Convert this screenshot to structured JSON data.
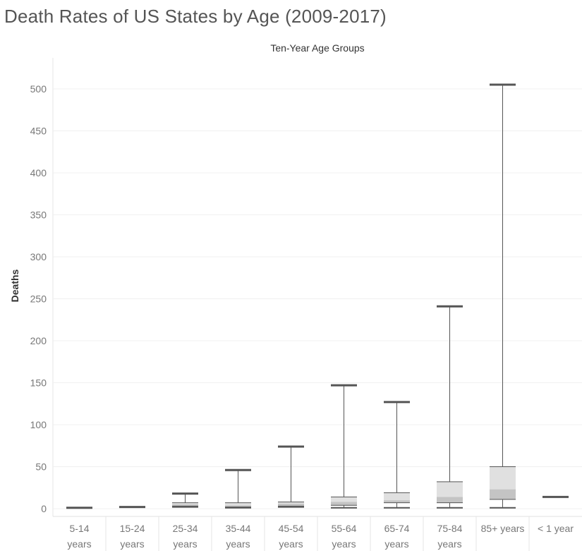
{
  "chart_data": {
    "type": "boxplot",
    "title": "Death Rates of US States by Age (2009-2017)",
    "column_header": "Ten-Year Age Groups",
    "ylabel": "Deaths",
    "xlabel": "",
    "ylim": [
      -10,
      530
    ],
    "yticks": [
      0,
      50,
      100,
      150,
      200,
      250,
      300,
      350,
      400,
      450,
      500
    ],
    "grid": true,
    "colors": {
      "box_upper": "#e0e0e0",
      "box_lower": "#c4c4c4",
      "whisker": "#555555"
    },
    "categories": [
      {
        "label": [
          "5-14",
          "years"
        ],
        "min": 1,
        "q1": 1,
        "median": 1,
        "q3": 1,
        "max": 1
      },
      {
        "label": [
          "15-24",
          "years"
        ],
        "min": 2,
        "q1": 2,
        "median": 2,
        "q3": 2,
        "max": 2
      },
      {
        "label": [
          "25-34",
          "years"
        ],
        "min": 2,
        "q1": 3,
        "median": 5,
        "q3": 7,
        "max": 18
      },
      {
        "label": [
          "35-44",
          "years"
        ],
        "min": 1,
        "q1": 2,
        "median": 4,
        "q3": 7,
        "max": 46
      },
      {
        "label": [
          "45-54",
          "years"
        ],
        "min": 2,
        "q1": 3,
        "median": 6,
        "q3": 8,
        "max": 74
      },
      {
        "label": [
          "55-64",
          "years"
        ],
        "min": 1,
        "q1": 4,
        "median": 8,
        "q3": 14,
        "max": 147
      },
      {
        "label": [
          "65-74",
          "years"
        ],
        "min": 1,
        "q1": 7,
        "median": 10,
        "q3": 19,
        "max": 127
      },
      {
        "label": [
          "75-84",
          "years"
        ],
        "min": 1,
        "q1": 7,
        "median": 14,
        "q3": 32,
        "max": 241
      },
      {
        "label": [
          "85+ years"
        ],
        "min": 1,
        "q1": 11,
        "median": 23,
        "q3": 50,
        "max": 505
      },
      {
        "label": [
          "< 1 year"
        ],
        "min": 14,
        "q1": 14,
        "median": 14,
        "q3": 14,
        "max": 14
      }
    ]
  }
}
